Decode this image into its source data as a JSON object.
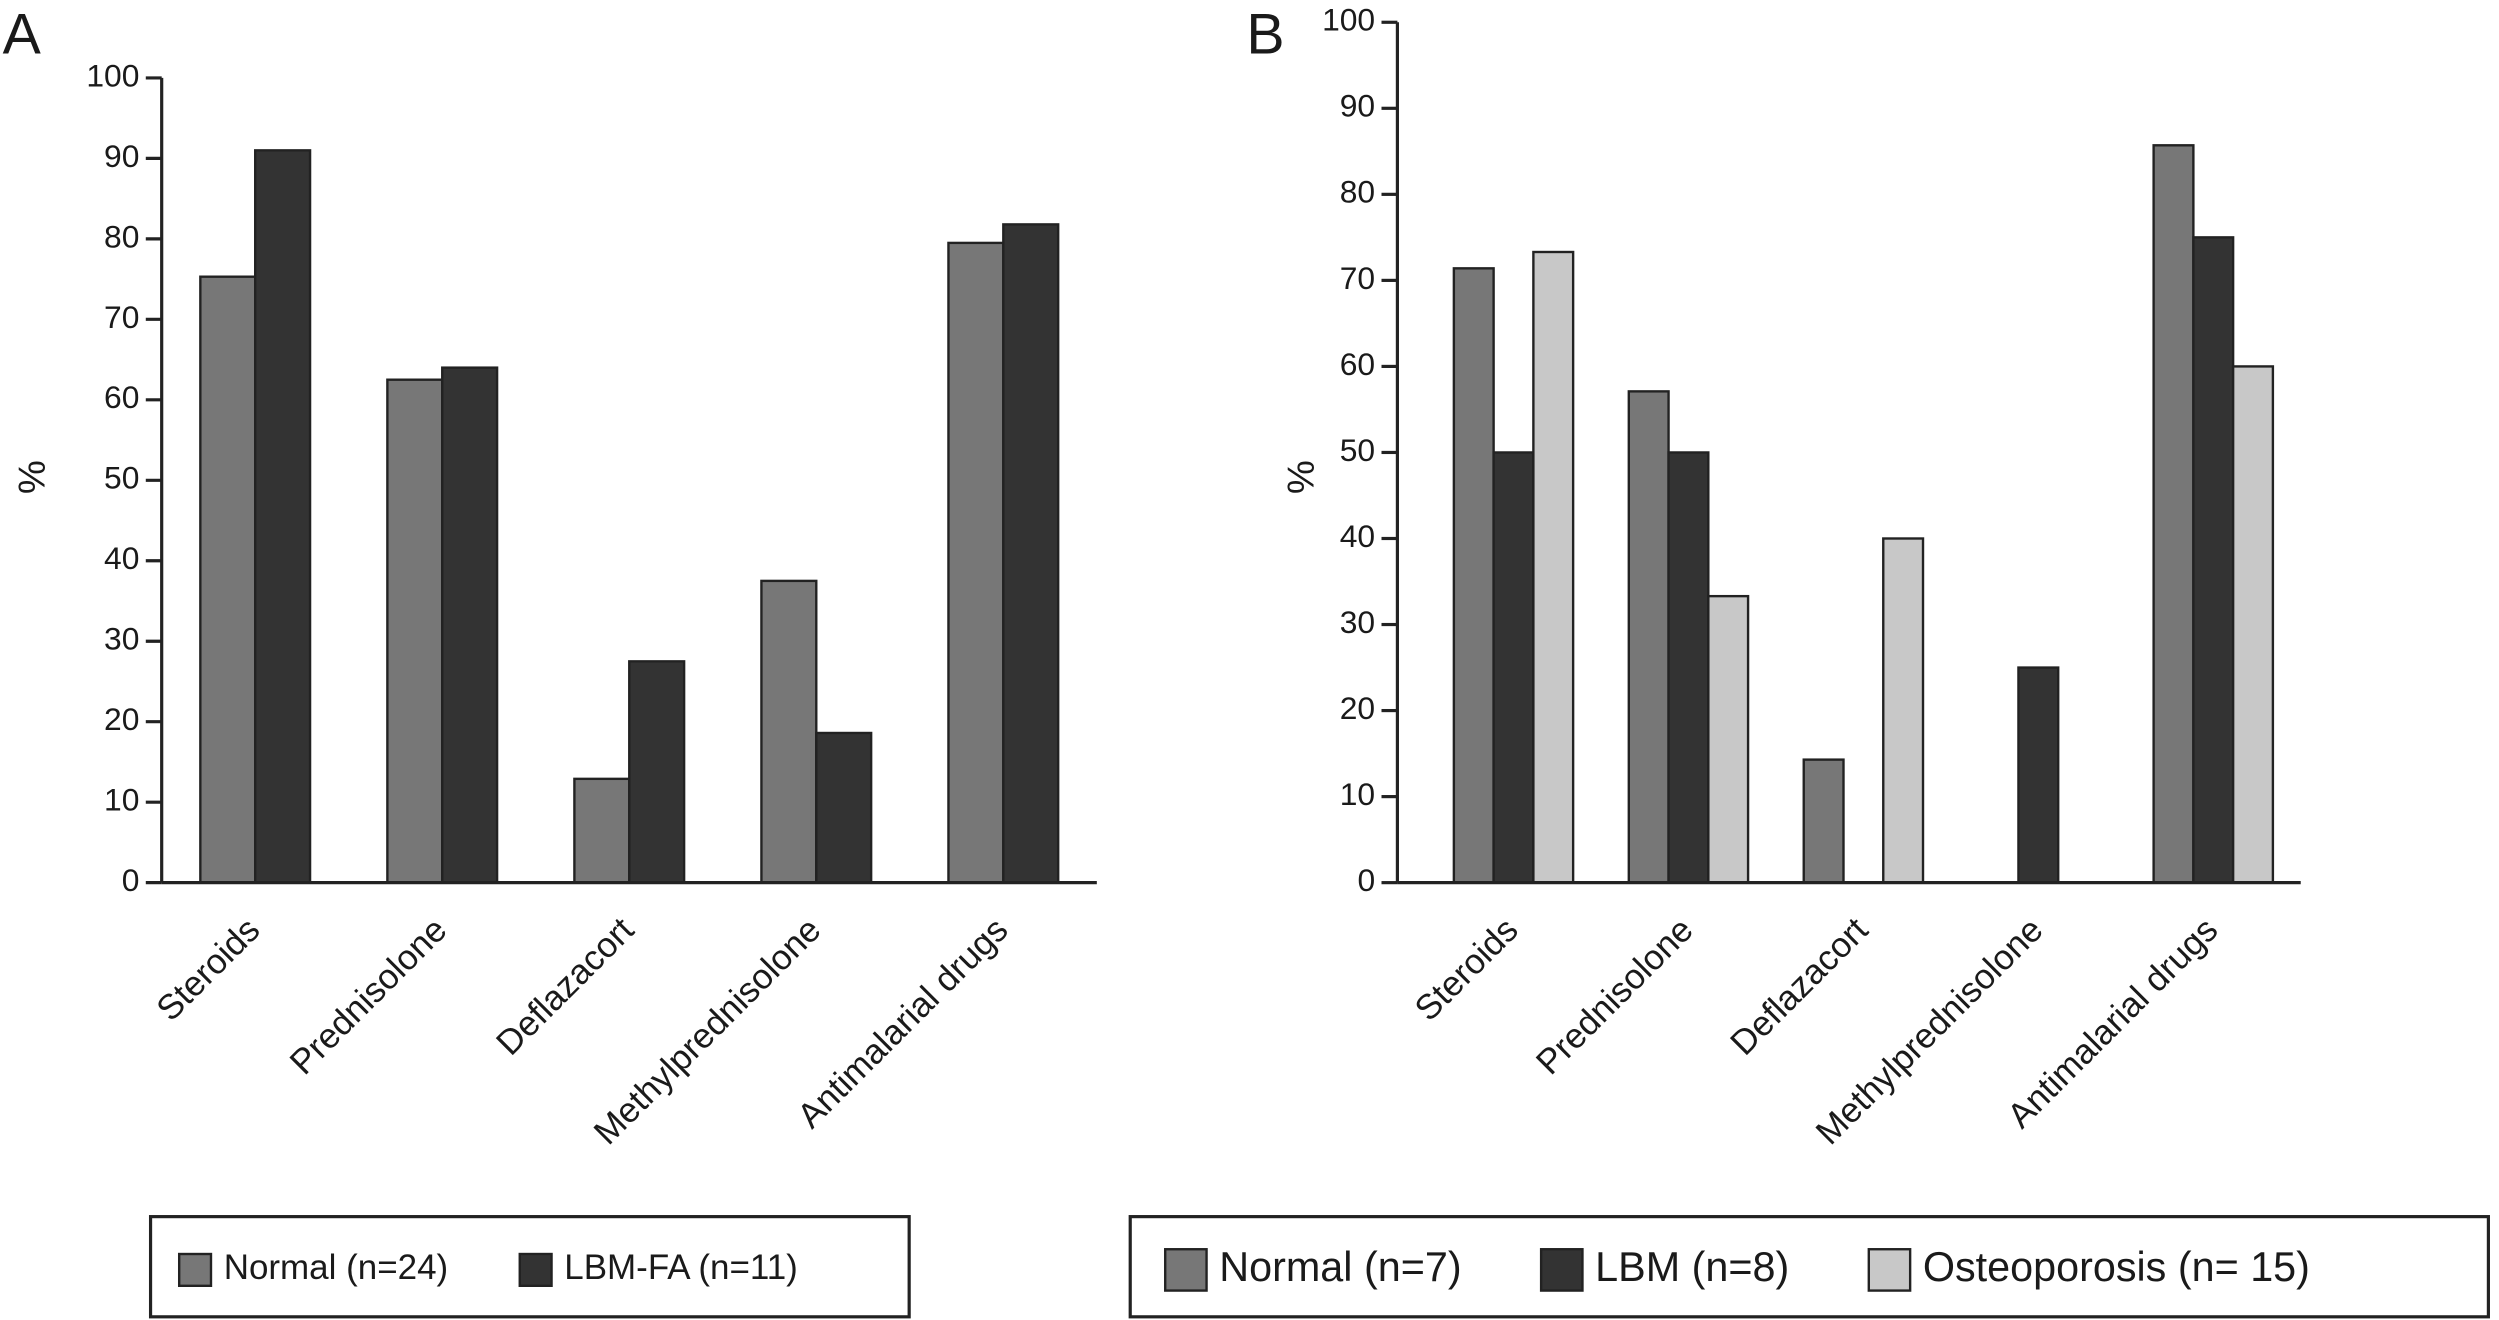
{
  "chart_data": [
    {
      "type": "bar",
      "label": "A",
      "y_label": "%",
      "categories": [
        "Steroids",
        "Prednisolone",
        "Deflazacort",
        "Methylprednisolone",
        "Antimalarial drugs"
      ],
      "series": [
        {
          "name": "Normal (n=24)",
          "color": "#777777",
          "values": [
            75.3,
            62.5,
            12.9,
            37.5,
            79.5
          ]
        },
        {
          "name": "LBM-FA (n=11)",
          "color": "#333333",
          "values": [
            91,
            64,
            27.5,
            18.6,
            81.8
          ]
        }
      ],
      "ylim": [
        0,
        100
      ],
      "yticks": [
        0,
        10,
        20,
        30,
        40,
        50,
        60,
        70,
        80,
        90,
        100
      ],
      "grid": false,
      "legend": "bottom"
    },
    {
      "type": "bar",
      "label": "B",
      "y_label": "%",
      "categories": [
        "Steroids",
        "Prednisolone",
        "Deflazacort",
        "Methylprednisolone",
        "Antimalarial drugs"
      ],
      "series": [
        {
          "name": "Normal (n=7)",
          "color": "#777777",
          "values": [
            71.4,
            57.1,
            14.3,
            0,
            85.7
          ]
        },
        {
          "name": "LBM (n=8)",
          "color": "#333333",
          "values": [
            50,
            50,
            0,
            25,
            75
          ]
        },
        {
          "name": "Osteoporosis (n= 15)",
          "color": "#c8c8c8",
          "values": [
            73.3,
            33.3,
            40,
            0,
            60
          ]
        }
      ],
      "ylim": [
        0,
        100
      ],
      "yticks": [
        0,
        10,
        20,
        30,
        40,
        50,
        60,
        70,
        80,
        90,
        100
      ],
      "grid": false,
      "legend": "bottom"
    }
  ]
}
